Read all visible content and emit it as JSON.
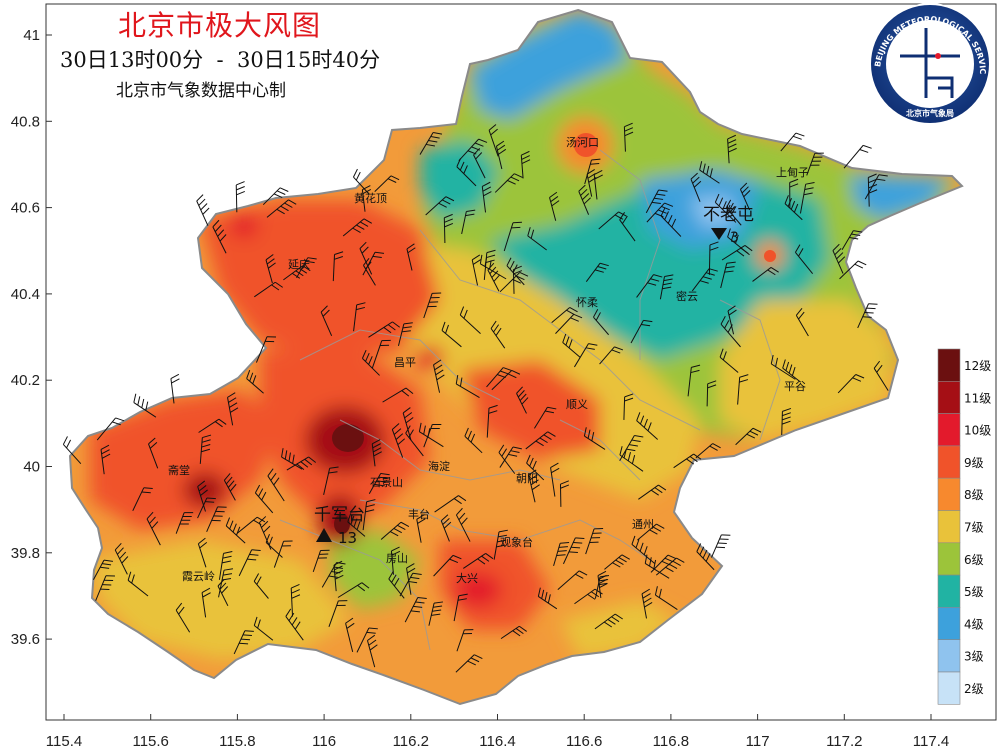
{
  "header": {
    "title": "北京市极大风图",
    "time_range": "30日13时00分  -  30日15时40分",
    "producer": "北京市气象数据中心制"
  },
  "logo": {
    "ring_text": "BEIJING METEOROLOGICAL SERVICE",
    "bottom_text": "北京市气象局"
  },
  "axes": {
    "x_ticks": [
      "115.4",
      "115.6",
      "115.8",
      "116",
      "116.2",
      "116.4",
      "116.6",
      "116.8",
      "117",
      "117.2",
      "117.4"
    ],
    "y_ticks": [
      "41",
      "40.8",
      "40.6",
      "40.4",
      "40.2",
      "40",
      "39.8",
      "39.6"
    ]
  },
  "places": [
    {
      "name": "汤河口"
    },
    {
      "name": "上甸子"
    },
    {
      "name": "黄花顶"
    },
    {
      "name": "延庆"
    },
    {
      "name": "怀柔"
    },
    {
      "name": "密云"
    },
    {
      "name": "昌平"
    },
    {
      "name": "顺义"
    },
    {
      "name": "平谷"
    },
    {
      "name": "海淀"
    },
    {
      "name": "石景山"
    },
    {
      "name": "朝阳"
    },
    {
      "name": "斋堂"
    },
    {
      "name": "丰台"
    },
    {
      "name": "通州"
    },
    {
      "name": "霞云岭"
    },
    {
      "name": "房山"
    },
    {
      "name": "观象台"
    },
    {
      "name": "大兴"
    }
  ],
  "extremes": {
    "max": {
      "station": "千军台",
      "level": "13",
      "marker": "up-triangle"
    },
    "min": {
      "station": "不老屯",
      "level": "3",
      "marker": "down-triangle"
    }
  },
  "legend": [
    {
      "label": "12级",
      "color": "#6b1010"
    },
    {
      "label": "11级",
      "color": "#a50f15"
    },
    {
      "label": "10级",
      "color": "#e31a2c"
    },
    {
      "label": "9级",
      "color": "#f0532a"
    },
    {
      "label": "8级",
      "color": "#f7892e"
    },
    {
      "label": "7级",
      "color": "#e9c23a"
    },
    {
      "label": "6级",
      "color": "#9cc43a"
    },
    {
      "label": "5级",
      "color": "#21b3a3"
    },
    {
      "label": "4级",
      "color": "#3da1dc"
    },
    {
      "label": "3级",
      "color": "#8fc3ee"
    },
    {
      "label": "2级",
      "color": "#c7e2f7"
    }
  ]
}
